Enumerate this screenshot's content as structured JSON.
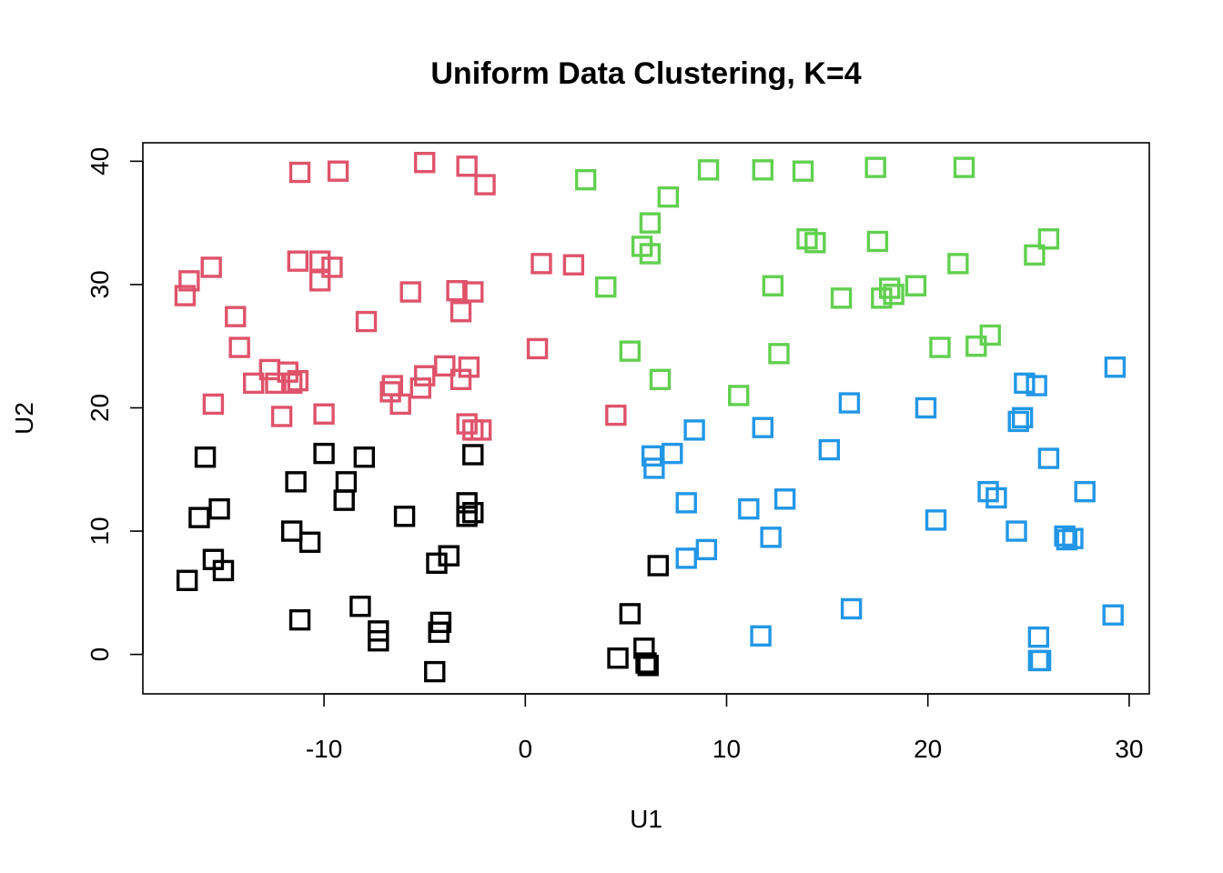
{
  "chart_data": {
    "type": "scatter",
    "title": "Uniform Data Clustering,  K=4",
    "xlabel": "U1",
    "ylabel": "U2",
    "xlim": [
      -19,
      31
    ],
    "ylim": [
      -3.2,
      41.5
    ],
    "x_ticks": [
      -10,
      0,
      10,
      20,
      30
    ],
    "y_ticks": [
      0,
      10,
      20,
      30,
      40
    ],
    "x_tick_labels": [
      "-10",
      "0",
      "10",
      "20",
      "30"
    ],
    "y_tick_labels": [
      "0",
      "10",
      "20",
      "30",
      "40"
    ],
    "grid": false,
    "legend": "none",
    "marker": "open-square",
    "series": [
      {
        "color": "#000000",
        "points": [
          [
            -15.9,
            16.0
          ],
          [
            -16.2,
            11.1
          ],
          [
            -15.2,
            11.8
          ],
          [
            -15.5,
            7.7
          ],
          [
            -15.0,
            6.8
          ],
          [
            -16.8,
            6.0
          ],
          [
            -11.4,
            14.0
          ],
          [
            -11.6,
            10.0
          ],
          [
            -10.7,
            9.1
          ],
          [
            -11.2,
            2.8
          ],
          [
            -10.0,
            16.3
          ],
          [
            -8.9,
            14.0
          ],
          [
            -9.0,
            12.5
          ],
          [
            -8.0,
            16.0
          ],
          [
            -8.2,
            3.9
          ],
          [
            -7.3,
            1.9
          ],
          [
            -7.3,
            1.1
          ],
          [
            -6.0,
            11.2
          ],
          [
            -4.4,
            7.4
          ],
          [
            -3.8,
            8.0
          ],
          [
            -4.2,
            2.6
          ],
          [
            -4.3,
            1.8
          ],
          [
            -4.5,
            -1.4
          ],
          [
            -2.9,
            12.3
          ],
          [
            -2.9,
            11.2
          ],
          [
            -2.6,
            11.5
          ],
          [
            -2.6,
            16.2
          ],
          [
            5.2,
            3.3
          ],
          [
            4.6,
            -0.3
          ],
          [
            5.9,
            0.5
          ],
          [
            6.0,
            -0.7
          ],
          [
            6.1,
            -0.9
          ],
          [
            6.6,
            7.2
          ]
        ]
      },
      {
        "color": "#DF536B",
        "points": [
          [
            -16.9,
            29.1
          ],
          [
            -16.7,
            30.3
          ],
          [
            -15.6,
            31.4
          ],
          [
            -14.4,
            27.4
          ],
          [
            -14.2,
            24.9
          ],
          [
            -15.5,
            20.3
          ],
          [
            -12.7,
            23.1
          ],
          [
            -13.5,
            22.0
          ],
          [
            -12.4,
            22.0
          ],
          [
            -11.8,
            22.9
          ],
          [
            -11.6,
            22.0
          ],
          [
            -11.3,
            22.2
          ],
          [
            -12.1,
            19.3
          ],
          [
            -11.2,
            39.1
          ],
          [
            -9.3,
            39.2
          ],
          [
            -11.3,
            31.9
          ],
          [
            -10.2,
            31.9
          ],
          [
            -10.2,
            30.3
          ],
          [
            -9.6,
            31.4
          ],
          [
            -7.9,
            27.0
          ],
          [
            -10.0,
            19.5
          ],
          [
            -5.0,
            39.9
          ],
          [
            -2.9,
            39.6
          ],
          [
            -2.0,
            38.1
          ],
          [
            -5.7,
            29.4
          ],
          [
            -3.4,
            29.5
          ],
          [
            -2.6,
            29.4
          ],
          [
            -3.2,
            27.8
          ],
          [
            -6.6,
            21.8
          ],
          [
            -6.7,
            21.3
          ],
          [
            -6.2,
            20.3
          ],
          [
            -5.2,
            21.6
          ],
          [
            -5.0,
            22.6
          ],
          [
            -4.0,
            23.4
          ],
          [
            -2.8,
            23.3
          ],
          [
            -3.2,
            22.3
          ],
          [
            -2.9,
            18.7
          ],
          [
            -2.6,
            18.2
          ],
          [
            -2.2,
            18.2
          ],
          [
            0.6,
            24.8
          ],
          [
            0.8,
            31.7
          ],
          [
            2.4,
            31.6
          ],
          [
            4.5,
            19.4
          ]
        ]
      },
      {
        "color": "#61D04F",
        "points": [
          [
            3.0,
            38.5
          ],
          [
            4.0,
            29.8
          ],
          [
            5.2,
            24.6
          ],
          [
            5.8,
            33.1
          ],
          [
            6.2,
            32.5
          ],
          [
            6.2,
            35.0
          ],
          [
            6.7,
            22.3
          ],
          [
            7.1,
            37.1
          ],
          [
            9.1,
            39.3
          ],
          [
            11.8,
            39.3
          ],
          [
            13.8,
            39.2
          ],
          [
            17.4,
            39.5
          ],
          [
            21.8,
            39.5
          ],
          [
            14.0,
            33.7
          ],
          [
            14.4,
            33.4
          ],
          [
            17.5,
            33.5
          ],
          [
            21.5,
            31.7
          ],
          [
            26.0,
            33.7
          ],
          [
            25.3,
            32.4
          ],
          [
            12.3,
            29.9
          ],
          [
            15.7,
            28.9
          ],
          [
            17.7,
            28.9
          ],
          [
            18.1,
            29.7
          ],
          [
            18.3,
            29.2
          ],
          [
            19.4,
            29.9
          ],
          [
            10.6,
            21.0
          ],
          [
            12.6,
            24.4
          ],
          [
            20.6,
            24.9
          ],
          [
            22.4,
            25.0
          ],
          [
            23.1,
            25.9
          ]
        ]
      },
      {
        "color": "#2297E6",
        "points": [
          [
            6.3,
            16.1
          ],
          [
            6.4,
            15.1
          ],
          [
            7.3,
            16.3
          ],
          [
            8.4,
            18.2
          ],
          [
            8.0,
            12.3
          ],
          [
            8.0,
            7.8
          ],
          [
            9.0,
            8.5
          ],
          [
            11.1,
            11.8
          ],
          [
            11.8,
            18.4
          ],
          [
            12.2,
            9.5
          ],
          [
            12.9,
            12.6
          ],
          [
            11.7,
            1.5
          ],
          [
            15.1,
            16.6
          ],
          [
            16.1,
            20.4
          ],
          [
            16.2,
            3.7
          ],
          [
            19.9,
            20.0
          ],
          [
            20.4,
            10.9
          ],
          [
            23.0,
            13.2
          ],
          [
            23.4,
            12.7
          ],
          [
            24.4,
            10.0
          ],
          [
            24.5,
            18.9
          ],
          [
            24.7,
            19.2
          ],
          [
            24.8,
            22.0
          ],
          [
            25.4,
            21.8
          ],
          [
            26.0,
            15.9
          ],
          [
            26.8,
            9.6
          ],
          [
            26.9,
            9.3
          ],
          [
            27.2,
            9.4
          ],
          [
            27.8,
            13.2
          ],
          [
            25.5,
            1.4
          ],
          [
            25.5,
            -0.5
          ],
          [
            25.6,
            -0.5
          ],
          [
            29.2,
            3.2
          ],
          [
            29.3,
            23.3
          ]
        ]
      }
    ]
  }
}
